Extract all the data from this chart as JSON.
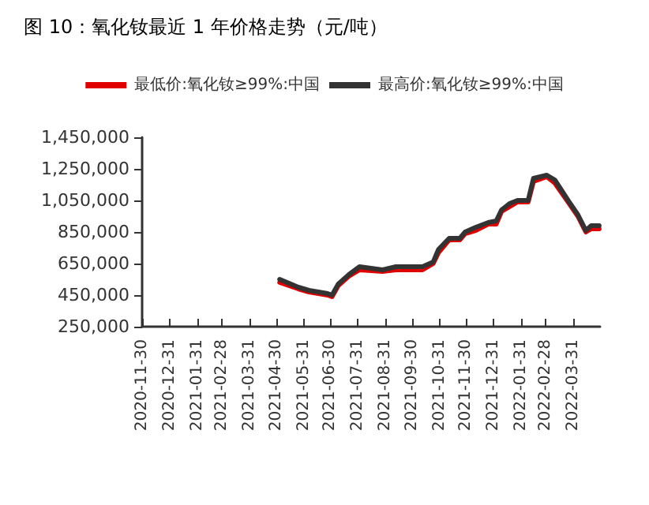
{
  "chart_data": {
    "type": "line",
    "title": "图 10：氧化钕最近 1 年价格走势（元/吨）",
    "x": [
      "2021-05-04",
      "2021-05-25",
      "2021-06-06",
      "2021-06-27",
      "2021-07-02",
      "2021-07-09",
      "2021-07-21",
      "2021-08-02",
      "2021-08-28",
      "2021-09-12",
      "2021-10-12",
      "2021-10-24",
      "2021-10-30",
      "2021-11-11",
      "2021-11-23",
      "2021-11-29",
      "2021-12-11",
      "2021-12-25",
      "2022-01-03",
      "2022-01-09",
      "2022-01-18",
      "2022-01-27",
      "2022-02-08",
      "2022-02-14",
      "2022-03-01",
      "2022-03-10",
      "2022-03-25",
      "2022-04-05",
      "2022-04-14",
      "2022-04-20",
      "2022-04-29"
    ],
    "series": [
      {
        "name": "最低价:氧化钕≥99%:中国",
        "color": "#e00000",
        "values": [
          530000,
          490000,
          470000,
          450000,
          440000,
          510000,
          570000,
          610000,
          600000,
          610000,
          610000,
          650000,
          720000,
          800000,
          800000,
          840000,
          860000,
          900000,
          900000,
          980000,
          1010000,
          1040000,
          1040000,
          1170000,
          1200000,
          1160000,
          1040000,
          950000,
          850000,
          870000,
          870000
        ]
      },
      {
        "name": "最高价:氧化钕≥99%:中国",
        "color": "#333333",
        "values": [
          550000,
          500000,
          480000,
          460000,
          450000,
          520000,
          580000,
          630000,
          610000,
          630000,
          630000,
          660000,
          740000,
          810000,
          810000,
          850000,
          880000,
          910000,
          920000,
          990000,
          1030000,
          1050000,
          1050000,
          1190000,
          1210000,
          1180000,
          1050000,
          960000,
          860000,
          890000,
          890000
        ]
      }
    ],
    "xlim": [
      "2020-11-30",
      "2022-04-30"
    ],
    "xticks": [
      "2020-11-30",
      "2020-12-31",
      "2021-01-31",
      "2021-02-28",
      "2021-03-31",
      "2021-04-30",
      "2021-05-31",
      "2021-06-30",
      "2021-07-31",
      "2021-08-31",
      "2021-09-30",
      "2021-10-31",
      "2021-11-30",
      "2021-12-31",
      "2022-01-31",
      "2022-02-28",
      "2022-03-31"
    ],
    "ylim": [
      250000,
      1450000
    ],
    "yticks": [
      {
        "value": 250000,
        "label": "250,000"
      },
      {
        "value": 450000,
        "label": "450,000"
      },
      {
        "value": 650000,
        "label": "650,000"
      },
      {
        "value": 850000,
        "label": "850,000"
      },
      {
        "value": 1050000,
        "label": "1,050,000"
      },
      {
        "value": 1250000,
        "label": "1,250,000"
      },
      {
        "value": 1450000,
        "label": "1,450,000"
      }
    ],
    "grid": false,
    "legend": "top",
    "marker": "none",
    "line_style": "solid"
  }
}
